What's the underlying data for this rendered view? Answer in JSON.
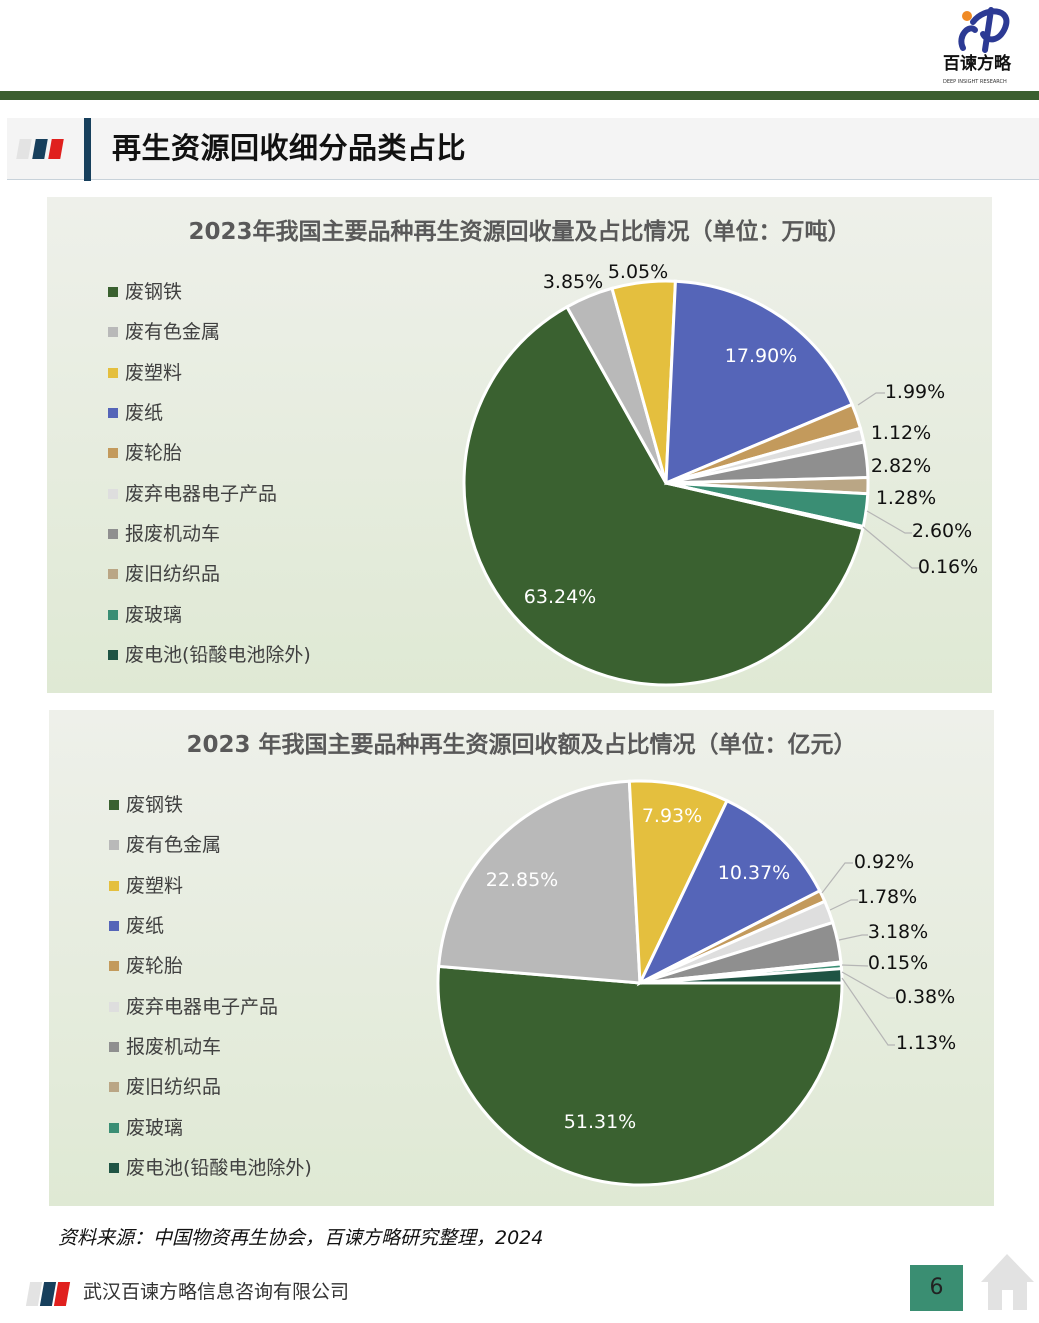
{
  "header": {
    "logo_text": "百谏方略",
    "logo_sub": "DEEP INSIGHT RESEARCH",
    "section_title": "再生资源回收细分品类占比"
  },
  "colors": {
    "accent_green": "#3b5e2f",
    "navy": "#173f5c",
    "red": "#e0201e"
  },
  "chart_data": [
    {
      "type": "pie",
      "title": "2023年我国主要品种再生资源回收量及占比情况（单位：万吨）",
      "legend_position": "left",
      "categories": [
        "废钢铁",
        "废有色金属",
        "废塑料",
        "废纸",
        "废轮胎",
        "废弃电器电子产品",
        "报废机动车",
        "废旧纺织品",
        "废玻璃",
        "废电池(铅酸电池除外)"
      ],
      "values": [
        63.24,
        3.85,
        5.05,
        17.9,
        1.99,
        1.12,
        2.82,
        1.28,
        2.6,
        0.16
      ],
      "labels": [
        "63.24%",
        "3.85%",
        "5.05%",
        "17.90%",
        "1.99%",
        "1.12%",
        "2.82%",
        "1.28%",
        "2.60%",
        "0.16%"
      ],
      "colors": [
        "#3a6130",
        "#b9b9b9",
        "#e4bf3e",
        "#5565b8",
        "#c39a5c",
        "#dedede",
        "#8f8f8f",
        "#baa685",
        "#3a8e74",
        "#1f5444"
      ]
    },
    {
      "type": "pie",
      "title": "2023 年我国主要品种再生资源回收额及占比情况（单位：亿元）",
      "legend_position": "left",
      "categories": [
        "废钢铁",
        "废有色金属",
        "废塑料",
        "废纸",
        "废轮胎",
        "废弃电器电子产品",
        "报废机动车",
        "废旧纺织品",
        "废玻璃",
        "废电池(铅酸电池除外)"
      ],
      "values": [
        51.31,
        22.85,
        7.93,
        10.37,
        0.92,
        1.78,
        3.18,
        0.15,
        0.38,
        1.13
      ],
      "labels": [
        "51.31%",
        "22.85%",
        "7.93%",
        "10.37%",
        "0.92%",
        "1.78%",
        "3.18%",
        "0.15%",
        "0.38%",
        "1.13%"
      ],
      "colors": [
        "#3a6130",
        "#b9b9b9",
        "#e4bf3e",
        "#5565b8",
        "#c39a5c",
        "#dedede",
        "#8f8f8f",
        "#baa685",
        "#3a8e74",
        "#1f5444"
      ]
    }
  ],
  "footer": {
    "source": "资料来源：中国物资再生协会，百谏方略研究整理，2024",
    "company": "武汉百谏方略信息咨询有限公司",
    "page": "6"
  }
}
